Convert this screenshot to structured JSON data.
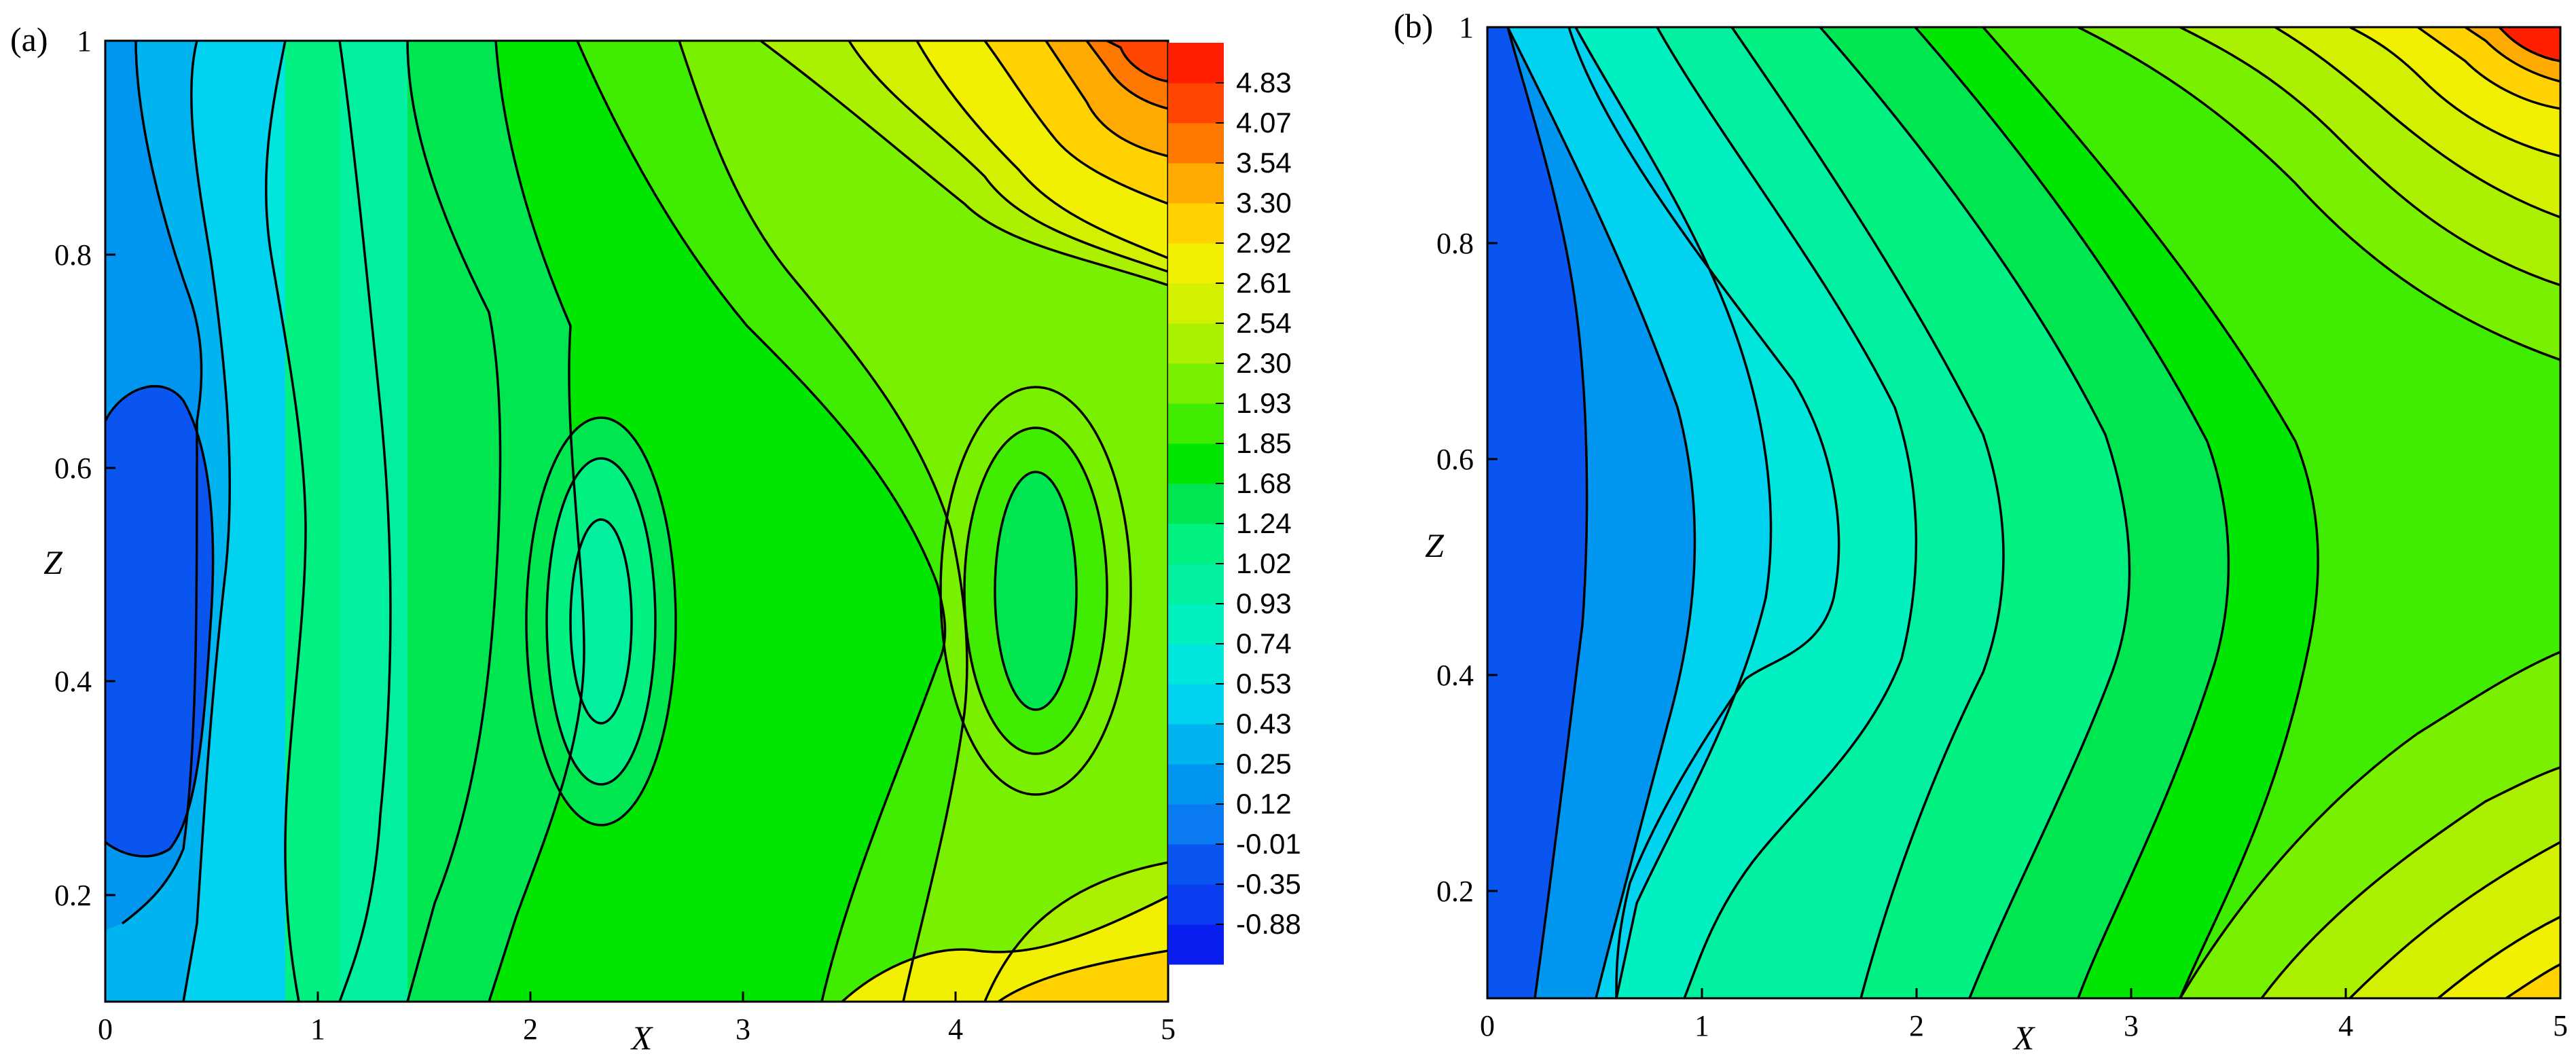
{
  "chart_data": [
    {
      "type": "contour",
      "panel_label": "(a)",
      "xlabel": "X",
      "ylabel": "Z",
      "xlim": [
        0,
        5
      ],
      "ylim": [
        0.1,
        1.0
      ],
      "x_ticks": [
        "0",
        "1",
        "2",
        "3",
        "4",
        "5"
      ],
      "y_ticks": [
        "0.2",
        "0.4",
        "0.6",
        "0.8",
        "1"
      ],
      "colorbar": {
        "levels": [
          "-0.88",
          "-0.35",
          "-0.01",
          "0.12",
          "0.25",
          "0.43",
          "0.53",
          "0.74",
          "0.93",
          "1.02",
          "1.24",
          "1.68",
          "1.85",
          "1.93",
          "2.30",
          "2.54",
          "2.61",
          "2.92",
          "3.30",
          "3.54",
          "4.07",
          "4.83"
        ],
        "colors": [
          "#0a1ef0",
          "#0a3cf0",
          "#0a55f0",
          "#0a7af0",
          "#0096f0",
          "#00b4f0",
          "#00d2f0",
          "#00e6dc",
          "#00f0c0",
          "#00f0a0",
          "#00f082",
          "#00e650",
          "#00e600",
          "#40ec00",
          "#78f000",
          "#aaf000",
          "#d2f000",
          "#f0f000",
          "#ffd200",
          "#ffaa00",
          "#ff7800",
          "#ff4600",
          "#ff1e00"
        ]
      }
    },
    {
      "type": "contour",
      "panel_label": "(b)",
      "xlabel": "X",
      "ylabel": "Z",
      "xlim": [
        0,
        5
      ],
      "ylim": [
        0.1,
        1.0
      ],
      "x_ticks": [
        "0",
        "1",
        "2",
        "3",
        "4",
        "5"
      ],
      "y_ticks": [
        "0.2",
        "0.4",
        "0.6",
        "0.8",
        "1"
      ]
    }
  ]
}
